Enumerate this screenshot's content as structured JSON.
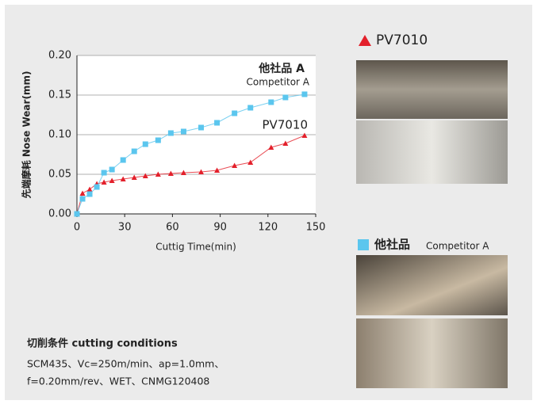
{
  "chart_data": {
    "type": "line",
    "y_label": "先端摩耗  Nose Wear(mm)",
    "x_label": "Cuttig Time(min)",
    "x": [
      0,
      3.5,
      8,
      12.5,
      17,
      22,
      29,
      36,
      43,
      51,
      59,
      67,
      78,
      88,
      99,
      109,
      122,
      131,
      143
    ],
    "series": [
      {
        "name": "PV7010",
        "color": "#e3202b",
        "marker": "triangle",
        "values": [
          0,
          0.026,
          0.031,
          0.038,
          0.04,
          0.042,
          0.044,
          0.046,
          0.048,
          0.05,
          0.051,
          0.052,
          0.053,
          0.055,
          0.061,
          0.065,
          0.084,
          0.089,
          0.099
        ]
      },
      {
        "name": "他社品 A",
        "subname": "Competitor A",
        "color": "#5bc6ee",
        "marker": "square",
        "values": [
          0,
          0.019,
          0.025,
          0.034,
          0.052,
          0.056,
          0.068,
          0.079,
          0.088,
          0.093,
          0.102,
          0.104,
          0.109,
          0.115,
          0.127,
          0.134,
          0.141,
          0.147,
          0.151
        ]
      }
    ],
    "xlim": [
      0,
      150
    ],
    "xticks": [
      0,
      30,
      60,
      90,
      120,
      150
    ],
    "ylim": [
      0,
      0.2
    ],
    "yticks": [
      {
        "value": 0,
        "label": "0.00"
      },
      {
        "value": 0.05,
        "label": "0.05"
      },
      {
        "value": 0.1,
        "label": "0.10"
      },
      {
        "value": 0.15,
        "label": "0.15"
      },
      {
        "value": 0.2,
        "label": "0.20"
      }
    ],
    "grid": true
  },
  "photos": [
    {
      "label": "PV7010"
    },
    {
      "label": "他社品",
      "sublabel": "Competitor A"
    }
  ],
  "conditions": {
    "title": "切削条件 cutting conditions",
    "lines": [
      "SCM435、Vc=250m/min、ap=1.0mm、",
      "f=0.20mm/rev、WET、CNMG120408"
    ]
  }
}
